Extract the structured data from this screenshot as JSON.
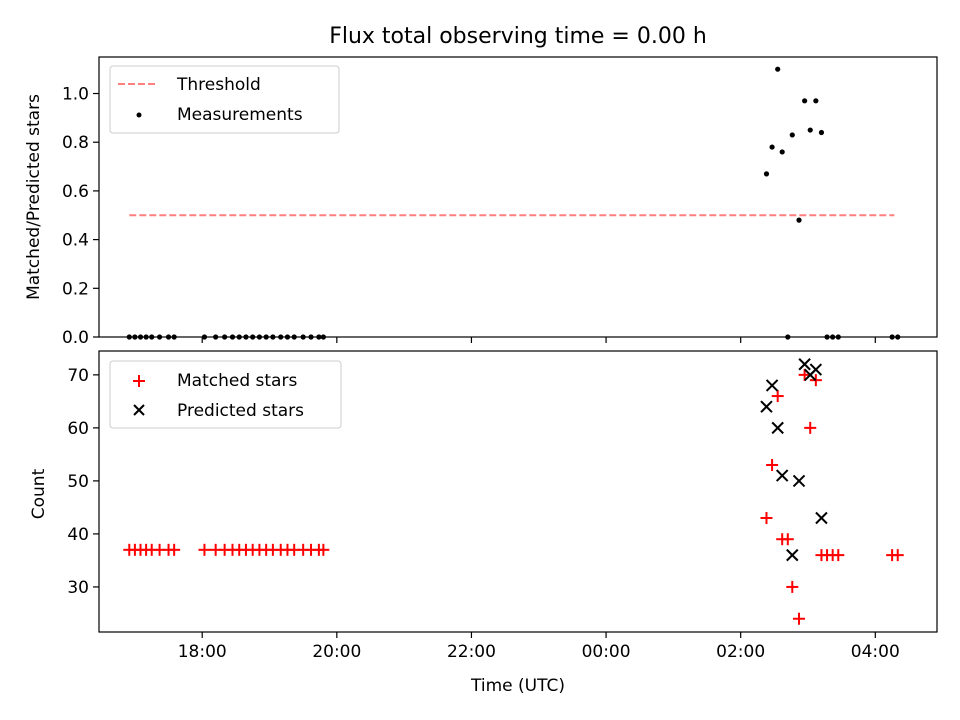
{
  "chart_data": [
    {
      "type": "scatter",
      "title": "Flux total observing time = 0.00 h",
      "xlabel": "",
      "ylabel": "Matched/Predicted stars",
      "xlim": [
        "16:28",
        "04:55"
      ],
      "ylim": [
        0,
        1.15
      ],
      "yticks": [
        "0.0",
        "0.2",
        "0.4",
        "0.6",
        "0.8",
        "1.0"
      ],
      "xticks": [
        "18:00",
        "20:00",
        "22:00",
        "00:00",
        "02:00",
        "04:00"
      ],
      "grid": false,
      "legend_position": "top-left",
      "legend": [
        {
          "label": "Threshold",
          "color": "#ff7f7f",
          "marker": "dashed-line"
        },
        {
          "label": "Measurements",
          "color": "#000000",
          "marker": "dot"
        }
      ],
      "threshold": {
        "value": 0.5,
        "x": [
          "16:55",
          "04:17"
        ]
      },
      "series": [
        {
          "name": "Measurements",
          "color": "#000000",
          "marker": "dot",
          "points": [
            [
              "16:55",
              0
            ],
            [
              "17:00",
              0
            ],
            [
              "17:05",
              0
            ],
            [
              "17:10",
              0
            ],
            [
              "17:15",
              0
            ],
            [
              "17:22",
              0
            ],
            [
              "17:30",
              0
            ],
            [
              "17:35",
              0
            ],
            [
              "18:02",
              0
            ],
            [
              "18:12",
              0
            ],
            [
              "18:20",
              0
            ],
            [
              "18:27",
              0
            ],
            [
              "18:33",
              0
            ],
            [
              "18:39",
              0
            ],
            [
              "18:45",
              0
            ],
            [
              "18:51",
              0
            ],
            [
              "18:57",
              0
            ],
            [
              "19:03",
              0
            ],
            [
              "19:10",
              0
            ],
            [
              "19:16",
              0
            ],
            [
              "19:22",
              0
            ],
            [
              "19:30",
              0
            ],
            [
              "19:37",
              0
            ],
            [
              "19:44",
              0
            ],
            [
              "19:48",
              0
            ],
            [
              "02:23",
              0.67
            ],
            [
              "02:28",
              0.78
            ],
            [
              "02:33",
              1.1
            ],
            [
              "02:37",
              0.76
            ],
            [
              "02:42",
              0
            ],
            [
              "02:46",
              0.83
            ],
            [
              "02:52",
              0.48
            ],
            [
              "02:57",
              0.97
            ],
            [
              "03:02",
              0.85
            ],
            [
              "03:07",
              0.97
            ],
            [
              "03:12",
              0.84
            ],
            [
              "03:17",
              0
            ],
            [
              "03:22",
              0
            ],
            [
              "03:27",
              0
            ],
            [
              "04:15",
              0
            ],
            [
              "04:20",
              0
            ]
          ]
        }
      ]
    },
    {
      "type": "scatter",
      "title": "",
      "xlabel": "Time (UTC)",
      "ylabel": "Count",
      "xlim": [
        "16:28",
        "04:55"
      ],
      "ylim": [
        21.5,
        74.5
      ],
      "yticks": [
        "30",
        "40",
        "50",
        "60",
        "70"
      ],
      "xticks": [
        "18:00",
        "20:00",
        "22:00",
        "00:00",
        "02:00",
        "04:00"
      ],
      "grid": false,
      "legend_position": "top-left",
      "legend": [
        {
          "label": "Matched stars",
          "color": "#ff0000",
          "marker": "plus"
        },
        {
          "label": "Predicted stars",
          "color": "#000000",
          "marker": "x"
        }
      ],
      "series": [
        {
          "name": "Matched stars",
          "color": "#ff0000",
          "marker": "plus",
          "points": [
            [
              "16:55",
              37
            ],
            [
              "17:00",
              37
            ],
            [
              "17:05",
              37
            ],
            [
              "17:10",
              37
            ],
            [
              "17:15",
              37
            ],
            [
              "17:22",
              37
            ],
            [
              "17:30",
              37
            ],
            [
              "17:35",
              37
            ],
            [
              "18:02",
              37
            ],
            [
              "18:12",
              37
            ],
            [
              "18:20",
              37
            ],
            [
              "18:27",
              37
            ],
            [
              "18:33",
              37
            ],
            [
              "18:39",
              37
            ],
            [
              "18:45",
              37
            ],
            [
              "18:51",
              37
            ],
            [
              "18:57",
              37
            ],
            [
              "19:03",
              37
            ],
            [
              "19:10",
              37
            ],
            [
              "19:16",
              37
            ],
            [
              "19:22",
              37
            ],
            [
              "19:30",
              37
            ],
            [
              "19:37",
              37
            ],
            [
              "19:44",
              37
            ],
            [
              "19:48",
              37
            ],
            [
              "02:23",
              43
            ],
            [
              "02:28",
              53
            ],
            [
              "02:33",
              66
            ],
            [
              "02:37",
              39
            ],
            [
              "02:42",
              39
            ],
            [
              "02:46",
              30
            ],
            [
              "02:52",
              24
            ],
            [
              "02:57",
              70
            ],
            [
              "03:02",
              60
            ],
            [
              "03:07",
              69
            ],
            [
              "03:12",
              36
            ],
            [
              "03:17",
              36
            ],
            [
              "03:22",
              36
            ],
            [
              "03:27",
              36
            ],
            [
              "04:15",
              36
            ],
            [
              "04:20",
              36
            ]
          ]
        },
        {
          "name": "Predicted stars",
          "color": "#000000",
          "marker": "x",
          "points": [
            [
              "02:23",
              64
            ],
            [
              "02:28",
              68
            ],
            [
              "02:33",
              60
            ],
            [
              "02:37",
              51
            ],
            [
              "02:46",
              36
            ],
            [
              "02:52",
              50
            ],
            [
              "02:57",
              72
            ],
            [
              "03:02",
              70
            ],
            [
              "03:07",
              71
            ],
            [
              "03:12",
              43
            ]
          ]
        }
      ]
    }
  ]
}
